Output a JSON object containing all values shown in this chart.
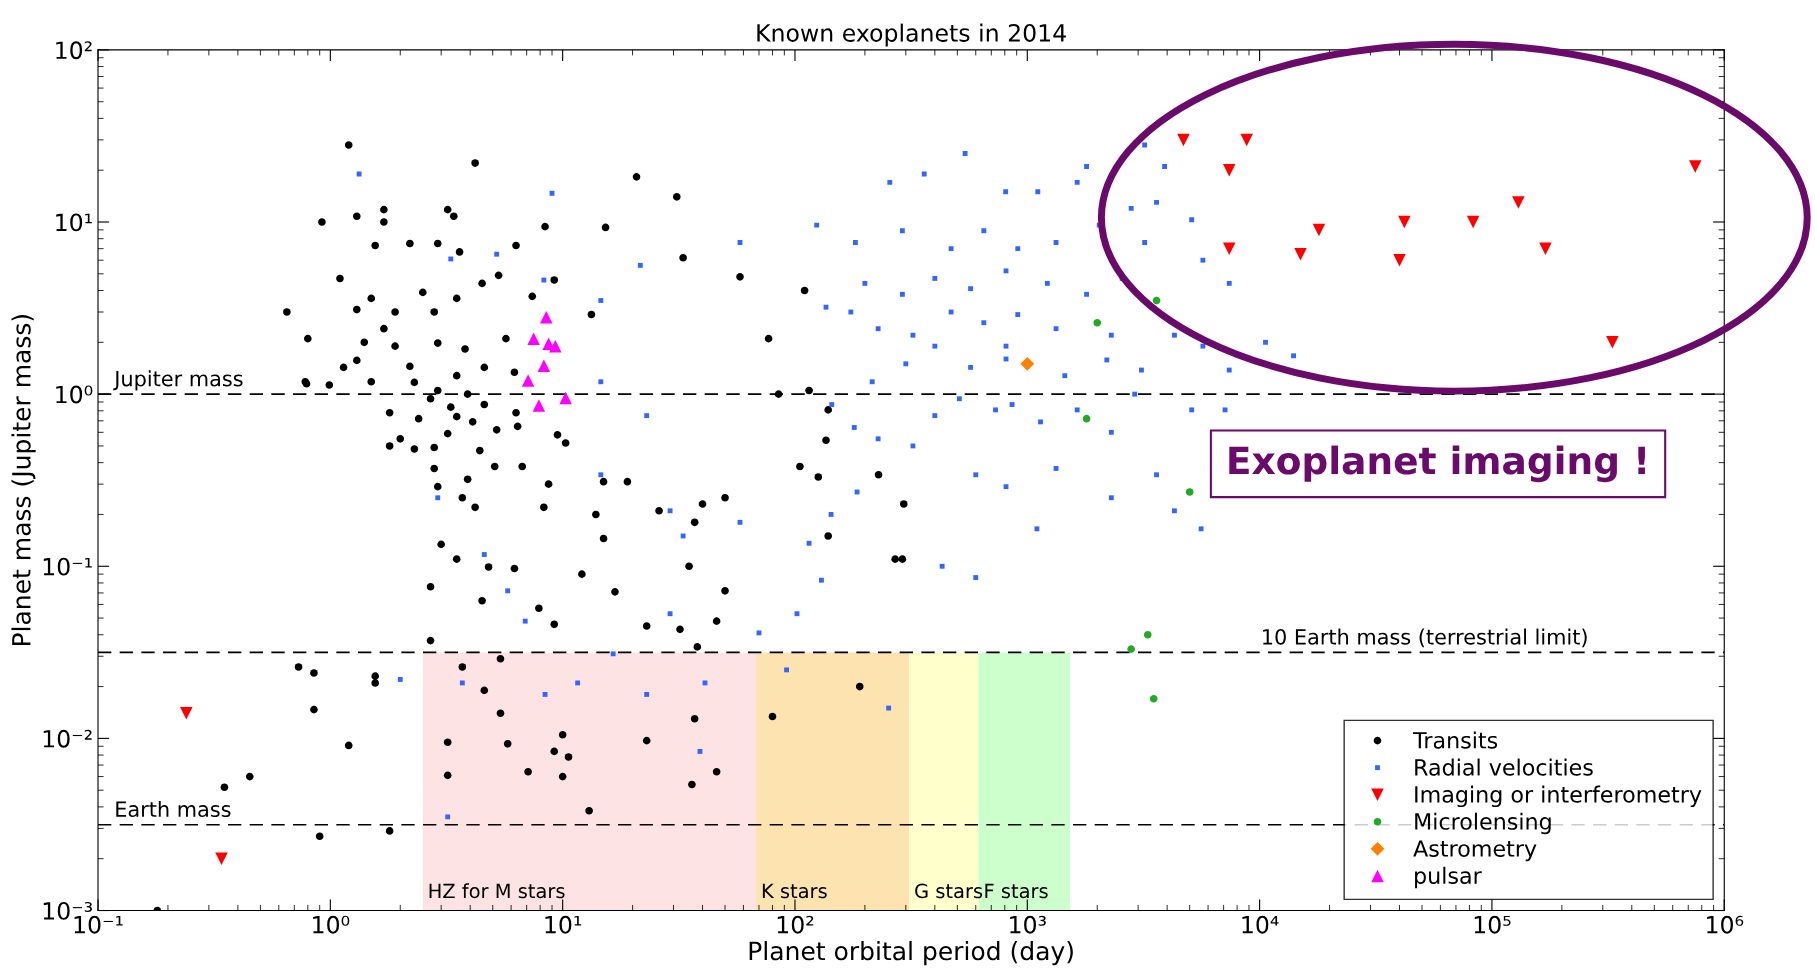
{
  "chart_data": {
    "type": "scatter",
    "title": "Known exoplanets in 2014",
    "xlabel": "Planet orbital period (day)",
    "ylabel": "Planet mass (Jupiter mass)",
    "log": "xy",
    "xlim": [
      0.1,
      1000000
    ],
    "ylim": [
      0.001,
      100
    ],
    "xticks": [
      {
        "value": 0.1,
        "label": "10⁻¹"
      },
      {
        "value": 1,
        "label": "10⁰"
      },
      {
        "value": 10,
        "label": "10¹"
      },
      {
        "value": 100,
        "label": "10²"
      },
      {
        "value": 1000,
        "label": "10³"
      },
      {
        "value": 10000,
        "label": "10⁴"
      },
      {
        "value": 100000,
        "label": "10⁵"
      },
      {
        "value": 1000000,
        "label": "10⁶"
      }
    ],
    "yticks": [
      {
        "value": 0.001,
        "label": "10⁻³"
      },
      {
        "value": 0.01,
        "label": "10⁻²"
      },
      {
        "value": 0.1,
        "label": "10⁻¹"
      },
      {
        "value": 1,
        "label": "10⁰"
      },
      {
        "value": 10,
        "label": "10¹"
      },
      {
        "value": 100,
        "label": "10²"
      }
    ],
    "grid": false,
    "legend": "bottom right",
    "ref_lines": [
      {
        "axis": "y",
        "value": 1,
        "label": "Jupiter mass",
        "color": "#000000",
        "line_style": "dashed"
      },
      {
        "axis": "y",
        "value": 0.0316,
        "label": "10 Earth mass (terrestrial limit)",
        "color": "#000000",
        "line_style": "dashed"
      },
      {
        "axis": "y",
        "value": 0.00315,
        "label": "Earth mass",
        "color": "#000000",
        "line_style": "dashed"
      }
    ],
    "bands": [
      {
        "axis": "x",
        "from": 2.5,
        "to": 68,
        "label": "HZ for M stars",
        "color": "#fde3e3"
      },
      {
        "axis": "x",
        "from": 68,
        "to": 310,
        "label": "K stars",
        "color": "#fde3b0"
      },
      {
        "axis": "x",
        "from": 310,
        "to": 617,
        "label": "G stars",
        "color": "#ffffcc"
      },
      {
        "axis": "x",
        "from": 617,
        "to": 1530,
        "label": "F stars",
        "color": "#ccffcc"
      }
    ],
    "annotations": [
      "Exoplanet imaging !"
    ],
    "series": [
      {
        "name": "Transits",
        "color": "#000000",
        "marker": "circle",
        "x": [
          0.18,
          0.35,
          0.45,
          0.9,
          1.8,
          0.73,
          0.85,
          0.85,
          1.2,
          1.56,
          1.56,
          0.65,
          0.8,
          0.79,
          0.92,
          1.2,
          1.1,
          1.3,
          1.56,
          1.7,
          1.7,
          2.2,
          4.2,
          3.2,
          2.9,
          3.4,
          3.6,
          6.3,
          8.4,
          15.3,
          20.8,
          31,
          33,
          58,
          110,
          77,
          115,
          139,
          136,
          105,
          126,
          229,
          294,
          270,
          290,
          190,
          139,
          80,
          36,
          37,
          46,
          23,
          13,
          10,
          10,
          10.6,
          9.2,
          7.1,
          5.8,
          5.4,
          4.6,
          5.4,
          3.7,
          3.2,
          3.2,
          2.7,
          2.7,
          3.5,
          4.8,
          4.5,
          6.2,
          7.9,
          9.2,
          12.1,
          15,
          16.8,
          23,
          32,
          38,
          46,
          50,
          35,
          37,
          40,
          50,
          26,
          19,
          15,
          13.9,
          10.3,
          9.5,
          6.4,
          6.7,
          5.1,
          3.9,
          4.4,
          3.5,
          2.8,
          2.7,
          2.3,
          2.2,
          1.9,
          1.7,
          1.4,
          1.3,
          1.3,
          1.5,
          1.9,
          2.5,
          3.5,
          4.5,
          5.3,
          7.4,
          9.2,
          13.3,
          2.8,
          2.9,
          3.8,
          4.6,
          5.7,
          6.2,
          3.5,
          2.9,
          3.9,
          4.6,
          3.3,
          4.1,
          3.2,
          5.2,
          6.3,
          2.4,
          1.8,
          1.5,
          1.14,
          0.99,
          0.78,
          1.8,
          2.0,
          2.3,
          2.8,
          2.9,
          3.7,
          4.2,
          3.0,
          8.3,
          8.7,
          85
        ],
        "values": [
          0.001,
          0.0052,
          0.006,
          0.0027,
          0.0029,
          0.026,
          0.024,
          0.0147,
          0.0091,
          0.023,
          0.021,
          3.0,
          2.1,
          1.15,
          10,
          28,
          4.7,
          10.8,
          7.3,
          11.8,
          10,
          7.5,
          22,
          11.8,
          7.5,
          10.8,
          6.7,
          7.3,
          9.4,
          9.3,
          18.3,
          14,
          6.2,
          4.8,
          4.0,
          2.1,
          1.05,
          0.81,
          0.54,
          0.38,
          0.33,
          0.34,
          0.23,
          0.11,
          0.11,
          0.02,
          0.15,
          0.0134,
          0.0054,
          0.013,
          0.0064,
          0.0097,
          0.0038,
          0.0105,
          0.006,
          0.0078,
          0.0084,
          0.0064,
          0.0093,
          0.014,
          0.019,
          0.029,
          0.026,
          0.0095,
          0.0061,
          0.037,
          0.076,
          0.11,
          0.099,
          0.063,
          0.097,
          0.057,
          0.046,
          0.09,
          0.145,
          0.071,
          0.045,
          0.043,
          0.034,
          0.048,
          0.072,
          0.1,
          0.18,
          0.23,
          0.25,
          0.21,
          0.31,
          0.31,
          0.2,
          0.52,
          0.58,
          0.65,
          0.38,
          0.38,
          0.32,
          0.47,
          0.74,
          0.49,
          0.94,
          1.17,
          1.45,
          1.9,
          2.4,
          2.0,
          1.57,
          3.1,
          3.6,
          3.0,
          3.9,
          3.6,
          4.4,
          4.9,
          3.7,
          4.6,
          2.9,
          3.0,
          1.98,
          1.83,
          1.43,
          2.1,
          1.34,
          1.28,
          1.05,
          1.0,
          0.87,
          0.84,
          0.69,
          0.59,
          0.62,
          0.78,
          0.72,
          0.78,
          1.18,
          1.43,
          1.13,
          1.18,
          0.5,
          0.55,
          0.48,
          0.37,
          0.29,
          0.25,
          0.22,
          0.134,
          0.22,
          0.3,
          1.0
        ]
      },
      {
        "name": "Radial velocities",
        "color": "#3366ff",
        "marker": "square",
        "x": [
          1.33,
          3.3,
          540,
          360,
          256,
          807,
          1110,
          1640,
          58,
          124,
          182,
          290,
          470,
          650,
          910,
          1330,
          2040,
          3200,
          5700,
          7400,
          2560,
          1800,
          1220,
          810,
          570,
          400,
          290,
          200,
          136,
          174,
          228,
          322,
          470,
          650,
          910,
          1330,
          2300,
          4300,
          5700,
          10600,
          14000,
          7400,
          3100,
          2200,
          1450,
          810,
          570,
          400,
          300,
          215,
          144,
          180,
          228,
          322,
          400,
          510,
          730,
          860,
          1140,
          1640,
          2300,
          5100,
          7100,
          2900,
          600,
          810,
          1330,
          2300,
          3600,
          5600,
          4300,
          1100,
          600,
          430,
          130,
          102,
          70,
          143,
          185,
          115,
          58,
          33,
          29,
          16.5,
          29,
          23,
          14.6,
          21.6,
          14.6,
          8.3,
          9,
          5.2,
          14.6,
          5.8,
          6.9,
          3.7,
          3.2,
          2.0,
          4.6,
          2.9,
          8.4,
          11.6,
          23,
          39,
          41,
          253,
          92,
          3600,
          2800,
          3200,
          3900,
          5100,
          1800,
          810
        ],
        "values": [
          19,
          6.1,
          25,
          19,
          17,
          15,
          15,
          17,
          7.6,
          9.6,
          7.6,
          8.9,
          7.0,
          8.9,
          7.0,
          7.6,
          9.6,
          7.6,
          6.0,
          4.4,
          4.7,
          3.8,
          4.4,
          5.2,
          4.1,
          4.7,
          3.8,
          4.4,
          3.2,
          3.0,
          2.4,
          2.2,
          3.0,
          2.6,
          2.9,
          2.4,
          2.2,
          2.2,
          1.9,
          2.0,
          1.67,
          1.38,
          1.38,
          1.58,
          1.28,
          1.6,
          1.43,
          1.9,
          1.5,
          1.18,
          0.87,
          0.64,
          0.55,
          0.5,
          0.75,
          0.94,
          0.81,
          0.87,
          0.69,
          0.81,
          0.6,
          0.81,
          0.81,
          1.0,
          0.34,
          0.29,
          0.37,
          0.25,
          0.34,
          0.165,
          0.21,
          0.165,
          0.086,
          0.1,
          0.083,
          0.053,
          0.041,
          0.2,
          0.27,
          0.136,
          0.18,
          0.15,
          0.053,
          0.031,
          0.21,
          0.75,
          0.34,
          5.6,
          3.5,
          4.6,
          14.7,
          6.5,
          1.18,
          0.072,
          0.048,
          0.021,
          0.0035,
          0.022,
          0.117,
          0.25,
          0.018,
          0.021,
          0.018,
          0.0084,
          0.021,
          0.015,
          0.025,
          13,
          12,
          28,
          21,
          10.3,
          21,
          1.9
        ]
      },
      {
        "name": "Imaging or interferometry",
        "color": "#ff0000",
        "marker": "triangle_down",
        "x": [
          0.24,
          0.34,
          4700,
          8800,
          7400,
          7400,
          15000,
          18000,
          42000,
          40000,
          83000,
          130000,
          170000,
          330000,
          750000
        ],
        "values": [
          0.014,
          0.002,
          30,
          30,
          20,
          7,
          6.5,
          9,
          10,
          6,
          10,
          13,
          7,
          2,
          21
        ]
      },
      {
        "name": "Microlensing",
        "color": "#22aa22",
        "marker": "circle",
        "x": [
          3600,
          2000,
          1800,
          5000,
          2800,
          3300,
          3500
        ],
        "values": [
          3.5,
          2.6,
          0.72,
          0.27,
          0.033,
          0.04,
          0.017
        ]
      },
      {
        "name": "Astrometry",
        "color": "#ff8000",
        "marker": "diamond",
        "x": [
          1000
        ],
        "values": [
          1.5
        ]
      },
      {
        "name": "pulsar",
        "color": "#ff00ff",
        "marker": "triangle",
        "x": [
          8.5,
          7.5,
          8.7,
          9.3,
          7.1,
          8.3,
          7.9,
          10.3
        ],
        "values": [
          2.8,
          2.1,
          1.96,
          1.9,
          1.2,
          1.46,
          0.86,
          0.95
        ]
      }
    ]
  }
}
